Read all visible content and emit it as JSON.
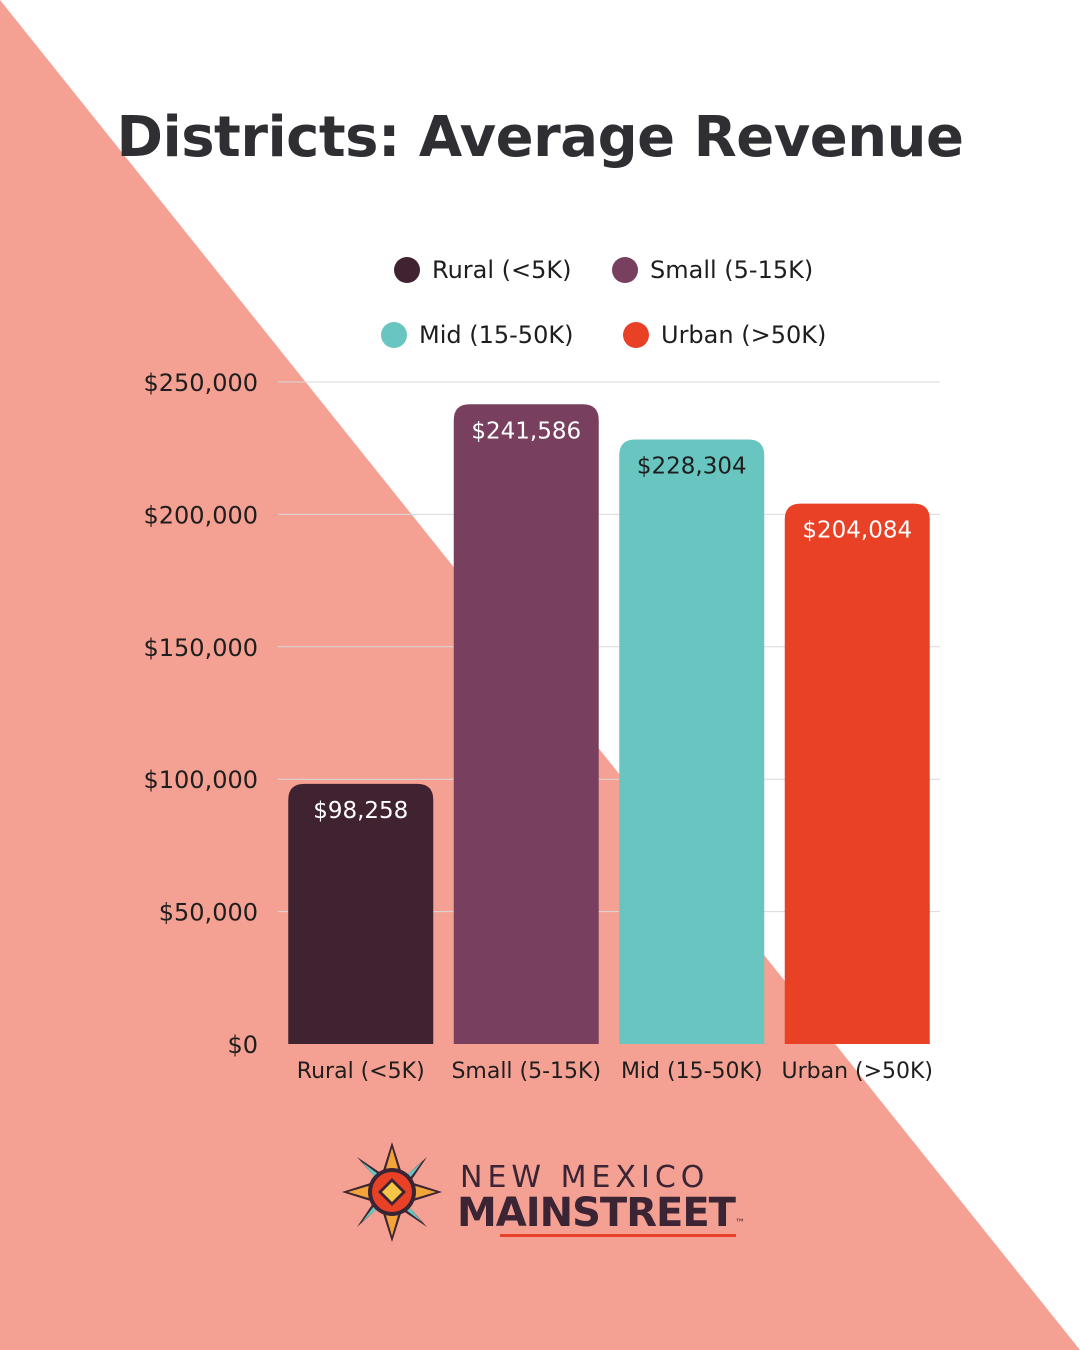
{
  "colors": {
    "background": "#ffffff",
    "triangle": "#f4a092",
    "grid": "#d9d9d9",
    "rural": "#402331",
    "small": "#78405e",
    "mid": "#68c5bf",
    "urban": "#e84125"
  },
  "chart_data": {
    "type": "bar",
    "title": "Districts: Average Revenue",
    "xlabel": "",
    "ylabel": "",
    "categories": [
      "Rural (<5K)",
      "Small (5-15K)",
      "Mid (15-50K)",
      "Urban (>50K)"
    ],
    "values": [
      98258,
      241586,
      228304,
      204084
    ],
    "value_labels": [
      "$98,258",
      "$241,586",
      "$228,304",
      "$204,084"
    ],
    "bar_colors": [
      "#402331",
      "#78405e",
      "#68c5bf",
      "#e84125"
    ],
    "value_label_colors": [
      "#ffffff",
      "#ffffff",
      "#1e1e1e",
      "#ffffff"
    ],
    "ylim": [
      0,
      250000
    ],
    "y_ticks": [
      0,
      50000,
      100000,
      150000,
      200000,
      250000
    ],
    "y_tick_labels": [
      "$0",
      "$50,000",
      "$100,000",
      "$150,000",
      "$200,000",
      "$250,000"
    ],
    "grid": true,
    "legend": {
      "placement": "top",
      "entries": [
        {
          "label": "Rural (<5K)",
          "color": "#402331"
        },
        {
          "label": "Small (5-15K)",
          "color": "#78405e"
        },
        {
          "label": "Mid (15-50K)",
          "color": "#68c5bf"
        },
        {
          "label": "Urban (>50K)",
          "color": "#e84125"
        }
      ]
    }
  },
  "logo": {
    "line1": "NEW MEXICO",
    "line2": "MAINSTREET",
    "tm": "™"
  }
}
